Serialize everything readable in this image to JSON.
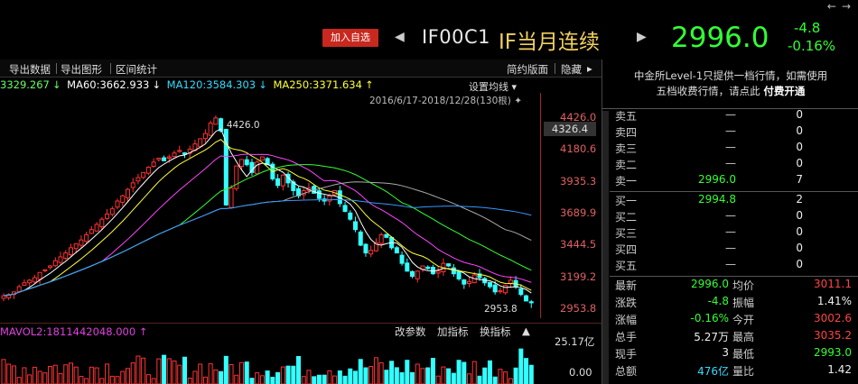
{
  "header": {
    "nav_left": "←",
    "nav_right": "→",
    "watch_label": "加入自选",
    "code": "IF00C1",
    "name": "IF当月连续",
    "last": "2996.0",
    "change": "-4.8",
    "change_pct": "-0.16%"
  },
  "toolbar": {
    "export_data": "导出数据",
    "export_chart": "导出图形",
    "interval_stats": "区间统计",
    "simple_layout": "简约版面",
    "hide": "隐藏"
  },
  "ma_legend": {
    "ma_first": "3329.267",
    "ma60": "MA60:3662.933",
    "ma120": "MA120:3584.303",
    "ma250": "MA250:3371.634",
    "colors": {
      "ma_first": "#66ff66",
      "ma60": "#ffffff",
      "ma120": "#33ddff",
      "ma250": "#ffff33"
    }
  },
  "chart": {
    "set_ma": "设置均线",
    "range": "2016/6/17-2018/12/28(130根)",
    "current_tag": "4326.4",
    "high_label": "4426.0",
    "low_label": "2953.8",
    "y_ticks": [
      "4426.0",
      "4180.6",
      "3935.3",
      "3689.9",
      "3444.5",
      "3199.2",
      "2953.8"
    ],
    "colors": {
      "up": "#ff3333",
      "down": "#33ffff",
      "ma5": "#ffffff",
      "ma10": "#ffff33",
      "ma20": "#ff44ff",
      "ma60": "#33ff33",
      "ma120": "#aaaaaa",
      "ma250": "#3399ff"
    }
  },
  "volume": {
    "legend": "MAVOL2:1811442048.000",
    "params": "改参数",
    "add_indicator": "加指标",
    "switch_indicator": "换指标",
    "y_top": "25.17亿",
    "y_bottom": "0.00"
  },
  "panel": {
    "notice_line1": "中金所Level-1只提供一档行情，如需使用",
    "notice_line2": "五档收费行情，请点此",
    "notice_link": "付费开通",
    "asks": [
      {
        "label": "卖五",
        "price": "—",
        "vol": "0"
      },
      {
        "label": "卖四",
        "price": "—",
        "vol": "0"
      },
      {
        "label": "卖三",
        "price": "—",
        "vol": "0"
      },
      {
        "label": "卖二",
        "price": "—",
        "vol": "0"
      },
      {
        "label": "卖一",
        "price": "2996.0",
        "vol": "7"
      }
    ],
    "bids": [
      {
        "label": "买一",
        "price": "2994.8",
        "vol": "2"
      },
      {
        "label": "买二",
        "price": "—",
        "vol": "0"
      },
      {
        "label": "买三",
        "price": "—",
        "vol": "0"
      },
      {
        "label": "买四",
        "price": "—",
        "vol": "0"
      },
      {
        "label": "买五",
        "price": "—",
        "vol": "0"
      }
    ],
    "stats": [
      {
        "l1": "最新",
        "v1": "2996.0",
        "c1": "green",
        "l2": "均价",
        "v2": "3011.1",
        "c2": "red"
      },
      {
        "l1": "涨跌",
        "v1": "-4.8",
        "c1": "green",
        "l2": "振幅",
        "v2": "1.41%",
        "c2": "white"
      },
      {
        "l1": "涨幅",
        "v1": "-0.16%",
        "c1": "green",
        "l2": "今开",
        "v2": "3002.6",
        "c2": "red"
      },
      {
        "l1": "总手",
        "v1": "5.27万",
        "c1": "white",
        "l2": "最高",
        "v2": "3035.2",
        "c2": "red"
      },
      {
        "l1": "现手",
        "v1": "3",
        "c1": "white",
        "l2": "最低",
        "v2": "2993.0",
        "c2": "green"
      },
      {
        "l1": "总额",
        "v1": "476亿",
        "c1": "cyan",
        "l2": "量比",
        "v2": "1.42",
        "c2": "white"
      }
    ]
  }
}
